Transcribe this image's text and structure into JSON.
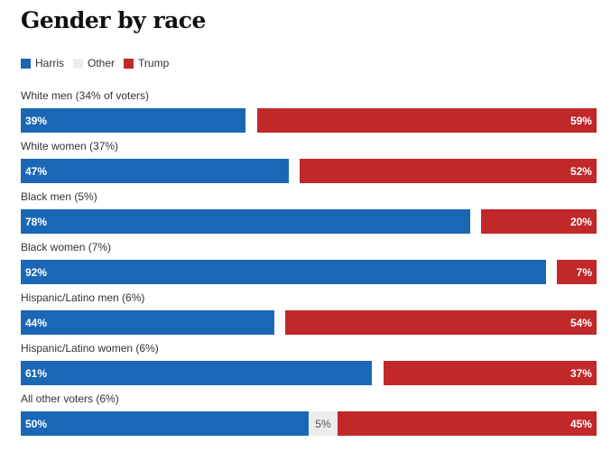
{
  "title": "Gender by race",
  "legend": [
    {
      "label": "Harris",
      "color": "#1a67b5"
    },
    {
      "label": "Other",
      "color": "#ececec"
    },
    {
      "label": "Trump",
      "color": "#c0282a"
    }
  ],
  "chart_data": {
    "type": "bar",
    "orientation": "horizontal-stacked",
    "title": "Gender by race",
    "categories": [
      "White men (34% of voters)",
      "White women (37%)",
      "Black men (5%)",
      "Black women (7%)",
      "Hispanic/Latino men (6%)",
      "Hispanic/Latino women (6%)",
      "All other voters (6%)"
    ],
    "series": [
      {
        "name": "Harris",
        "color": "#1a67b5",
        "values": [
          39,
          47,
          78,
          92,
          44,
          61,
          50
        ],
        "labels": [
          "39%",
          "47%",
          "78%",
          "92%",
          "44%",
          "61%",
          "50%"
        ]
      },
      {
        "name": "Other",
        "color": "#ececec",
        "values": [
          2,
          1,
          2,
          1,
          2,
          2,
          5
        ],
        "labels": [
          "",
          "",
          "",
          "",
          "",
          "",
          "5%"
        ]
      },
      {
        "name": "Trump",
        "color": "#c0282a",
        "values": [
          59,
          52,
          20,
          7,
          54,
          37,
          45
        ],
        "labels": [
          "59%",
          "52%",
          "20%",
          "7%",
          "54%",
          "37%",
          "45%"
        ]
      }
    ],
    "xlim": [
      0,
      100
    ],
    "legend_position": "top-left",
    "grid": false
  }
}
